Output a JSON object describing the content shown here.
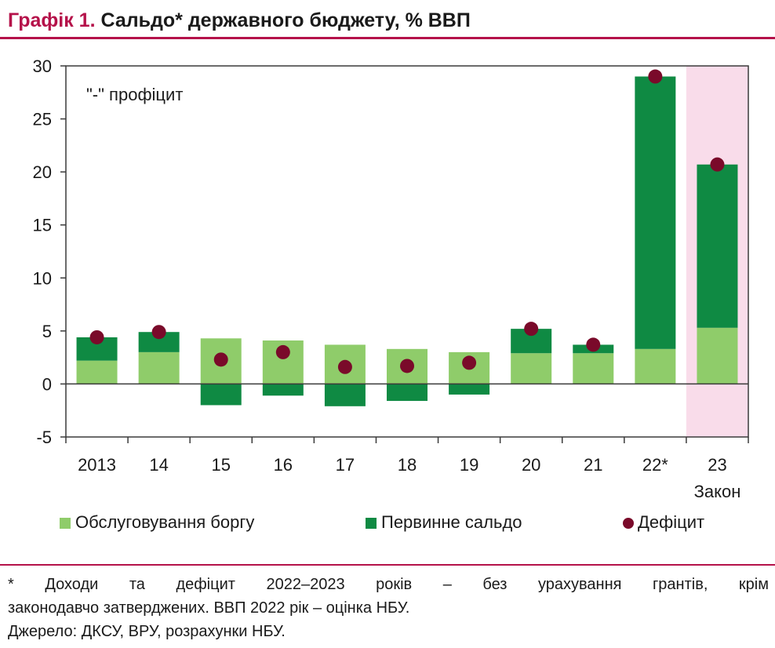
{
  "header": {
    "label": "Графік 1.",
    "title": "Сальдо* державного бюджету, % ВВП"
  },
  "chart_data": {
    "type": "bar",
    "stacked": true,
    "categories": [
      "2013",
      "14",
      "15",
      "16",
      "17",
      "18",
      "19",
      "20",
      "21",
      "22*",
      "23"
    ],
    "category_sublabels": [
      "",
      "",
      "",
      "",
      "",
      "",
      "",
      "",
      "",
      "",
      "Закон"
    ],
    "series": [
      {
        "name": "Обслуговування боргу",
        "kind": "bar",
        "color": "#8fcc6a",
        "values": [
          2.2,
          3.0,
          4.3,
          4.1,
          3.7,
          3.3,
          3.0,
          2.9,
          2.9,
          3.3,
          5.3
        ]
      },
      {
        "name": "Первинне сальдо",
        "kind": "bar",
        "color": "#0f8a43",
        "values": [
          2.2,
          1.9,
          -2.0,
          -1.1,
          -2.1,
          -1.6,
          -1.0,
          2.3,
          0.8,
          25.7,
          15.4
        ]
      },
      {
        "name": "Дефіцит",
        "kind": "marker",
        "color": "#7a0a2a",
        "values": [
          4.4,
          4.9,
          2.3,
          3.0,
          1.6,
          1.7,
          2.0,
          5.2,
          3.7,
          29.0,
          20.7
        ]
      }
    ],
    "ylim": [
      -5,
      30
    ],
    "yticks": [
      -5,
      0,
      5,
      10,
      15,
      20,
      25,
      30
    ],
    "annotation": "\"-\" профіцит",
    "highlight_category": "23",
    "highlight_color": "#f9dcea",
    "legend_position": "bottom",
    "gridlines": false
  },
  "footnotes": {
    "line1": "* Доходи та дефіцит 2022–2023 років – без урахування грантів, крім",
    "line2": "законодавчо затверджених. ВВП 2022 рік – оцінка НБУ.",
    "source": "Джерело: ДКСУ, ВРУ, розрахунки НБУ."
  }
}
